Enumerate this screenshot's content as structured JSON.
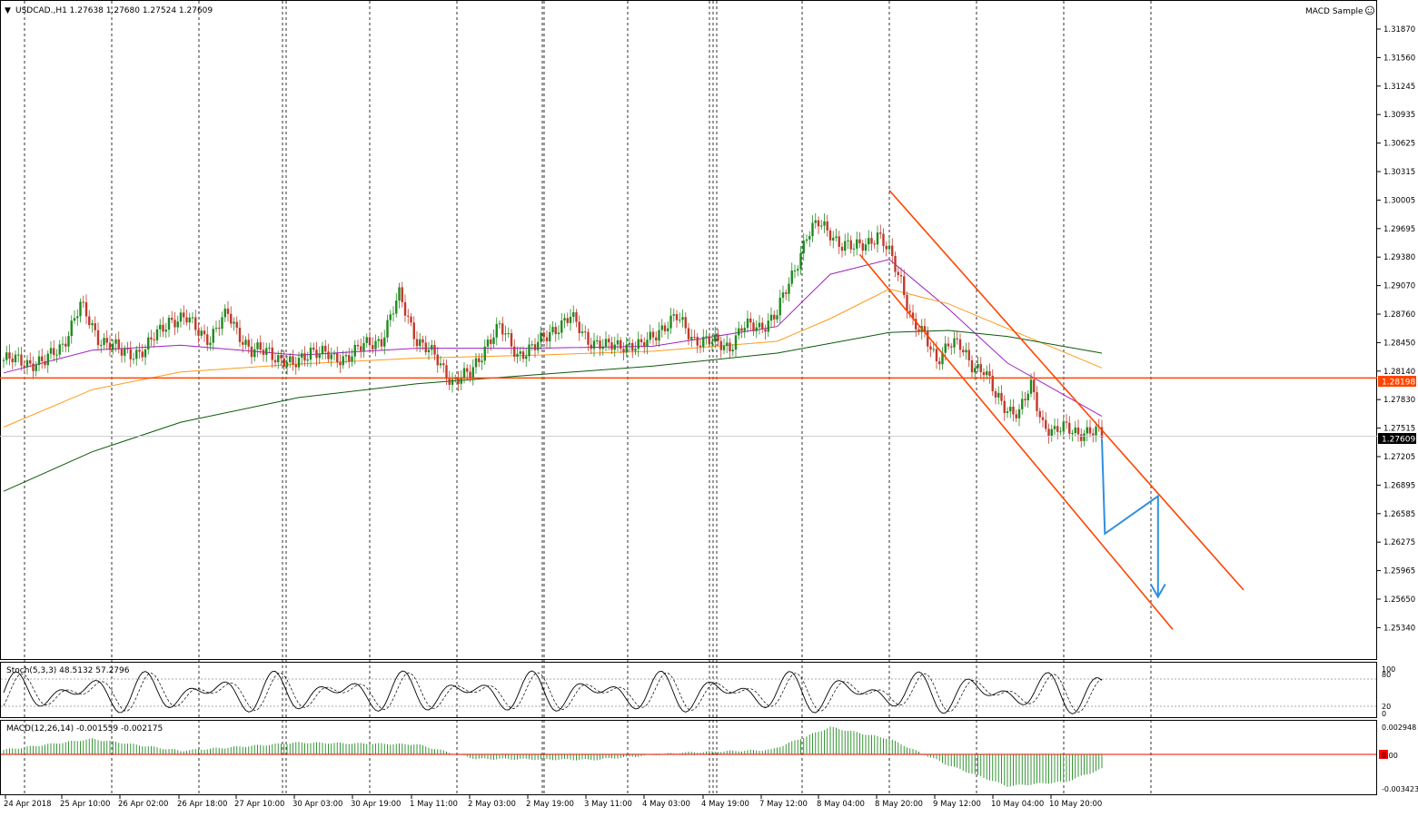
{
  "header": {
    "symbol_label": "USDCAD.,H1  1.27638 1.27680 1.27524 1.27609",
    "indicator_label": "MACD Sample"
  },
  "price_axis": {
    "labels": [
      "1.31870",
      "1.31560",
      "1.31245",
      "1.30935",
      "1.30625",
      "1.30315",
      "1.30005",
      "1.29695",
      "1.29380",
      "1.29070",
      "1.28760",
      "1.28450",
      "1.28140",
      "1.27830",
      "1.27515",
      "1.27205",
      "1.26895",
      "1.26585",
      "1.26275",
      "1.25965",
      "1.25650",
      "1.25340"
    ],
    "hline_tag": "1.28198",
    "current_tag": "1.27609"
  },
  "stoch": {
    "label": "Stoch(5,3,3) 48.5132 57.2796",
    "levels": [
      "100",
      "80",
      "20",
      "0"
    ]
  },
  "macd": {
    "label": "MACD(12,26,14) -0.001559 -0.002175",
    "levels": [
      "0.002948",
      "0.00",
      "-0.003423"
    ]
  },
  "time_axis": {
    "labels": [
      "24 Apr 2018",
      "25 Apr 10:00",
      "26 Apr 02:00",
      "26 Apr 18:00",
      "27 Apr 10:00",
      "30 Apr 03:00",
      "30 Apr 19:00",
      "1 May 11:00",
      "2 May 03:00",
      "2 May 19:00",
      "3 May 11:00",
      "4 May 03:00",
      "4 May 19:00",
      "7 May 12:00",
      "8 May 04:00",
      "8 May 20:00",
      "9 May 12:00",
      "10 May 04:00",
      "10 May 20:00"
    ]
  },
  "colors": {
    "background": "#ffffff",
    "bull_candle": "#1f8a1f",
    "bear_candle": "#c0392b",
    "ma_fast": "#a020c0",
    "ma_mid": "#ff9a1a",
    "ma_slow": "#0a5a0a",
    "channel": "#ff4500",
    "projection": "#2f8fe0",
    "stoch_main": "#000000",
    "macd_hist": "#1f8a1f",
    "macd_signal": "#ff0000"
  },
  "chart_data": {
    "type": "candlestick",
    "symbol": "USDCAD",
    "timeframe": "H1",
    "ohlc_last": {
      "open": 1.27638,
      "high": 1.2768,
      "low": 1.27524,
      "close": 1.27609
    },
    "y_range": [
      1.2534,
      1.3203
    ],
    "horizontal_line": 1.28198,
    "current_price": 1.27609,
    "price_path": [
      [
        0,
        1.2838
      ],
      [
        14,
        1.2835
      ],
      [
        20,
        1.2855
      ],
      [
        26,
        1.2892
      ],
      [
        32,
        1.2862
      ],
      [
        40,
        1.2845
      ],
      [
        48,
        1.2848
      ],
      [
        56,
        1.288
      ],
      [
        62,
        1.2878
      ],
      [
        70,
        1.286
      ],
      [
        76,
        1.2885
      ],
      [
        84,
        1.2845
      ],
      [
        90,
        1.2848
      ],
      [
        98,
        1.283
      ],
      [
        104,
        1.285
      ],
      [
        112,
        1.2838
      ],
      [
        120,
        1.2848
      ],
      [
        128,
        1.286
      ],
      [
        134,
        1.2902
      ],
      [
        140,
        1.286
      ],
      [
        146,
        1.284
      ],
      [
        152,
        1.2818
      ],
      [
        158,
        1.2822
      ],
      [
        164,
        1.2858
      ],
      [
        168,
        1.287
      ],
      [
        174,
        1.2845
      ],
      [
        180,
        1.285
      ],
      [
        186,
        1.287
      ],
      [
        192,
        1.288
      ],
      [
        198,
        1.286
      ],
      [
        204,
        1.285
      ],
      [
        210,
        1.2855
      ],
      [
        216,
        1.285
      ],
      [
        222,
        1.287
      ],
      [
        228,
        1.288
      ],
      [
        234,
        1.286
      ],
      [
        240,
        1.2855
      ],
      [
        246,
        1.2853
      ],
      [
        250,
        1.287
      ],
      [
        256,
        1.2872
      ],
      [
        262,
        1.2885
      ],
      [
        266,
        1.2915
      ],
      [
        272,
        1.2965
      ],
      [
        276,
        1.2975
      ],
      [
        280,
        1.2968
      ],
      [
        284,
        1.2955
      ],
      [
        288,
        1.295
      ],
      [
        292,
        1.2958
      ],
      [
        296,
        1.2965
      ],
      [
        300,
        1.2945
      ],
      [
        304,
        1.292
      ],
      [
        308,
        1.2875
      ],
      [
        312,
        1.286
      ],
      [
        316,
        1.284
      ],
      [
        320,
        1.2855
      ],
      [
        324,
        1.285
      ],
      [
        328,
        1.2835
      ],
      [
        332,
        1.2828
      ],
      [
        336,
        1.28
      ],
      [
        340,
        1.279
      ],
      [
        344,
        1.2785
      ],
      [
        348,
        1.281
      ],
      [
        352,
        1.2775
      ],
      [
        356,
        1.2765
      ],
      [
        360,
        1.2768
      ],
      [
        364,
        1.2766
      ],
      [
        368,
        1.2765
      ],
      [
        372,
        1.2761
      ]
    ],
    "moving_averages": [
      {
        "name": "MA fast",
        "values": [
          [
            0,
            1.2825
          ],
          [
            30,
            1.2848
          ],
          [
            60,
            1.2853
          ],
          [
            100,
            1.2843
          ],
          [
            140,
            1.285
          ],
          [
            180,
            1.285
          ],
          [
            220,
            1.2852
          ],
          [
            262,
            1.2872
          ],
          [
            280,
            1.2925
          ],
          [
            300,
            1.294
          ],
          [
            320,
            1.289
          ],
          [
            340,
            1.2835
          ],
          [
            372,
            1.2781
          ]
        ]
      },
      {
        "name": "MA mid",
        "values": [
          [
            0,
            1.277
          ],
          [
            30,
            1.2808
          ],
          [
            60,
            1.2826
          ],
          [
            100,
            1.2834
          ],
          [
            140,
            1.284
          ],
          [
            180,
            1.2843
          ],
          [
            220,
            1.2847
          ],
          [
            262,
            1.2857
          ],
          [
            280,
            1.288
          ],
          [
            300,
            1.291
          ],
          [
            320,
            1.2895
          ],
          [
            340,
            1.287
          ],
          [
            372,
            1.283
          ]
        ]
      },
      {
        "name": "MA slow",
        "values": [
          [
            0,
            1.2705
          ],
          [
            30,
            1.2745
          ],
          [
            60,
            1.2775
          ],
          [
            100,
            1.28
          ],
          [
            140,
            1.2814
          ],
          [
            180,
            1.2823
          ],
          [
            220,
            1.2832
          ],
          [
            262,
            1.2845
          ],
          [
            280,
            1.2855
          ],
          [
            300,
            1.2866
          ],
          [
            320,
            1.2868
          ],
          [
            340,
            1.2862
          ],
          [
            372,
            1.2845
          ]
        ]
      }
    ],
    "channel": {
      "upper": [
        [
          300,
          1.301
        ],
        [
          420,
          1.2605
        ]
      ],
      "lower": [
        [
          290,
          1.2945
        ],
        [
          396,
          1.2565
        ]
      ]
    },
    "projection": [
      [
        372,
        1.2758
      ],
      [
        373,
        1.2662
      ],
      [
        391,
        1.27
      ],
      [
        391,
        1.2598
      ]
    ],
    "stochastic": {
      "k": 48.5132,
      "d": 57.2796,
      "levels": [
        80,
        20
      ]
    },
    "macd": {
      "main": -0.001559,
      "signal": -0.002175,
      "range": [
        -0.003423,
        0.002948
      ]
    }
  }
}
